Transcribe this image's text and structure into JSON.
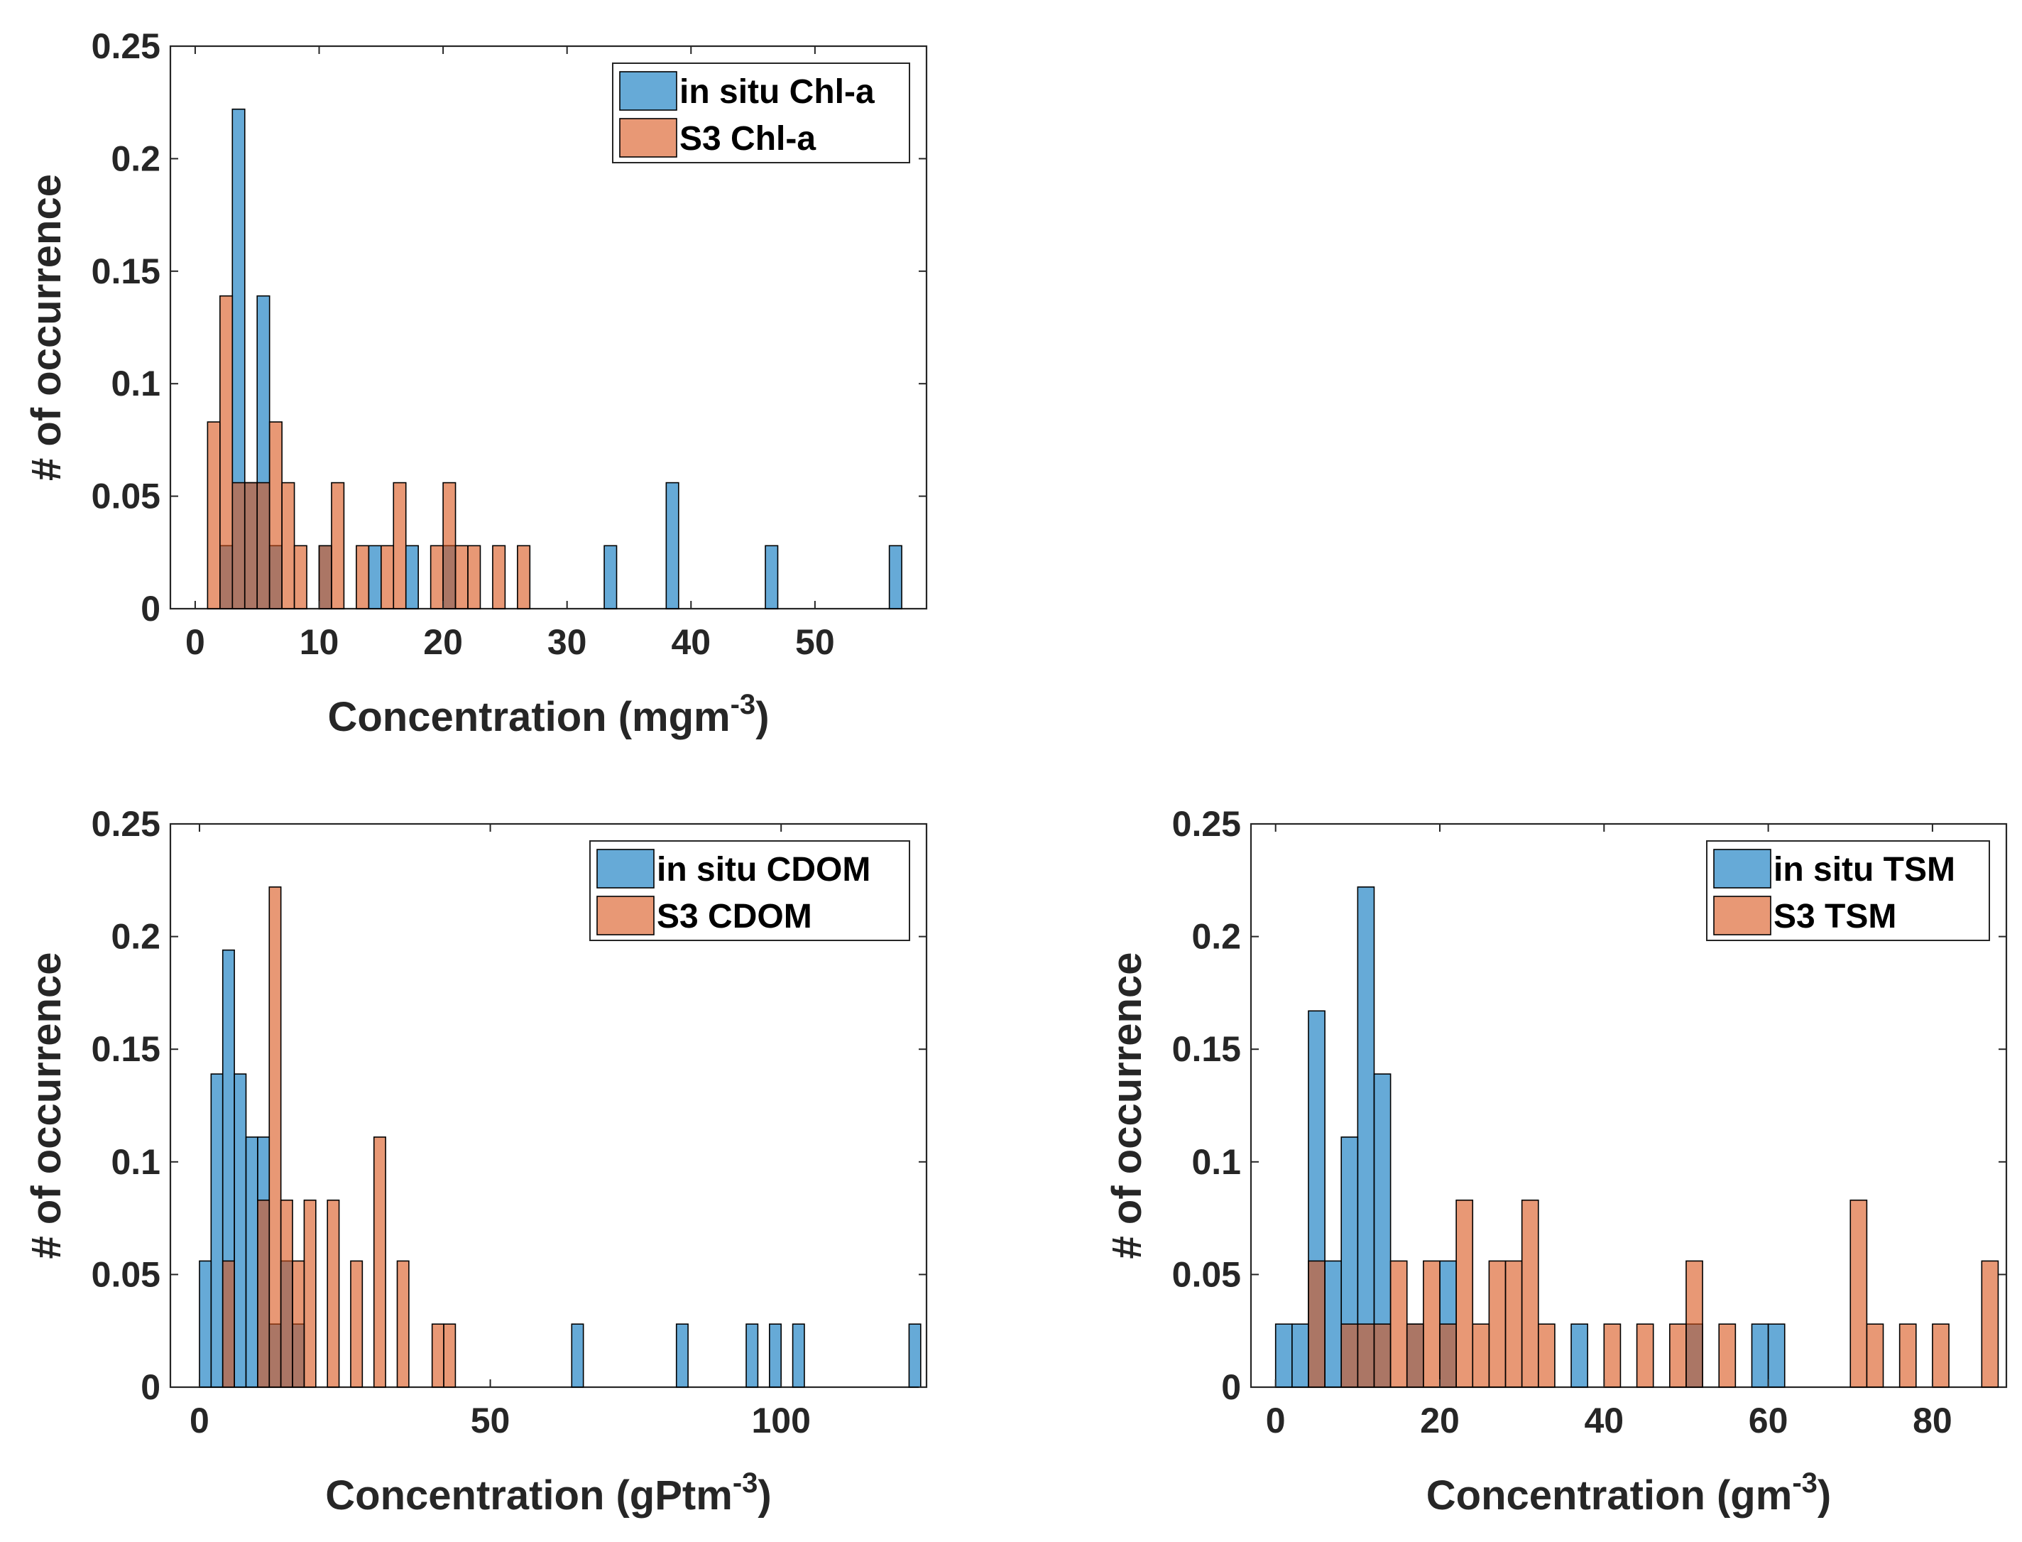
{
  "chart_data": [
    {
      "type": "bar",
      "subtype": "overlaid-histogram",
      "panel": "top-left",
      "title": "",
      "xlabel": "Concentration (mgm",
      "xlabel_sup": "-3",
      "xlabel_end": ")",
      "ylabel": "# of occurrence",
      "xlim": [
        -2,
        59
      ],
      "ylim": [
        0,
        0.25
      ],
      "xticks": [
        0,
        10,
        20,
        30,
        40,
        50
      ],
      "yticks": [
        0,
        0.05,
        0.1,
        0.15,
        0.2,
        0.25
      ],
      "ytick_labels": [
        "0",
        "0.05",
        "0.1",
        "0.15",
        "0.2",
        "0.25"
      ],
      "bin_width": 1,
      "legend_position": "top-right",
      "series": [
        {
          "name": "in situ Chl-a",
          "color": "#0072BD",
          "bins": [
            [
              2,
              0.028
            ],
            [
              3,
              0.222
            ],
            [
              4,
              0.056
            ],
            [
              5,
              0.139
            ],
            [
              6,
              0.028
            ],
            [
              10,
              0.028
            ],
            [
              14,
              0.028
            ],
            [
              17,
              0.028
            ],
            [
              20,
              0.028
            ],
            [
              33,
              0.028
            ],
            [
              38,
              0.056
            ],
            [
              46,
              0.028
            ],
            [
              56,
              0.028
            ]
          ]
        },
        {
          "name": "S3 Chl-a",
          "color": "#D95319",
          "bins": [
            [
              1,
              0.083
            ],
            [
              2,
              0.139
            ],
            [
              3,
              0.056
            ],
            [
              4,
              0.056
            ],
            [
              5,
              0.056
            ],
            [
              6,
              0.083
            ],
            [
              7,
              0.056
            ],
            [
              8,
              0.028
            ],
            [
              10,
              0.028
            ],
            [
              11,
              0.056
            ],
            [
              13,
              0.028
            ],
            [
              15,
              0.028
            ],
            [
              16,
              0.056
            ],
            [
              19,
              0.028
            ],
            [
              20,
              0.056
            ],
            [
              21,
              0.028
            ],
            [
              22,
              0.028
            ],
            [
              24,
              0.028
            ],
            [
              26,
              0.028
            ]
          ]
        }
      ]
    },
    {
      "type": "bar",
      "subtype": "overlaid-histogram",
      "panel": "bottom-left",
      "title": "",
      "xlabel": "Concentration (gPtm",
      "xlabel_sup": "-3",
      "xlabel_end": ")",
      "ylabel": "# of occurrence",
      "xlim": [
        -5,
        125
      ],
      "ylim": [
        0,
        0.25
      ],
      "xticks": [
        0,
        50,
        100
      ],
      "yticks": [
        0,
        0.05,
        0.1,
        0.15,
        0.2,
        0.25
      ],
      "ytick_labels": [
        "0",
        "0.05",
        "0.1",
        "0.15",
        "0.2",
        "0.25"
      ],
      "bin_width": 2,
      "legend_position": "top-right",
      "series": [
        {
          "name": "in situ CDOM",
          "color": "#0072BD",
          "bins": [
            [
              0,
              0.056
            ],
            [
              2,
              0.139
            ],
            [
              4,
              0.194
            ],
            [
              6,
              0.139
            ],
            [
              8,
              0.111
            ],
            [
              10,
              0.111
            ],
            [
              12,
              0.028
            ],
            [
              14,
              0.056
            ],
            [
              16,
              0.028
            ],
            [
              64,
              0.028
            ],
            [
              82,
              0.028
            ],
            [
              94,
              0.028
            ],
            [
              98,
              0.028
            ],
            [
              102,
              0.028
            ],
            [
              122,
              0.028
            ]
          ]
        },
        {
          "name": "S3 CDOM",
          "color": "#D95319",
          "bins": [
            [
              4,
              0.056
            ],
            [
              10,
              0.083
            ],
            [
              12,
              0.222
            ],
            [
              14,
              0.083
            ],
            [
              16,
              0.056
            ],
            [
              18,
              0.083
            ],
            [
              22,
              0.083
            ],
            [
              26,
              0.056
            ],
            [
              30,
              0.111
            ],
            [
              34,
              0.056
            ],
            [
              40,
              0.028
            ],
            [
              42,
              0.028
            ]
          ]
        }
      ]
    },
    {
      "type": "bar",
      "subtype": "overlaid-histogram",
      "panel": "bottom-right",
      "title": "",
      "xlabel": "Concentration (gm",
      "xlabel_sup": "-3",
      "xlabel_end": ")",
      "ylabel": "# of occurrence",
      "xlim": [
        -3,
        89
      ],
      "ylim": [
        0,
        0.25
      ],
      "xticks": [
        0,
        20,
        40,
        60,
        80
      ],
      "yticks": [
        0,
        0.05,
        0.1,
        0.15,
        0.2,
        0.25
      ],
      "ytick_labels": [
        "0",
        "0.05",
        "0.1",
        "0.15",
        "0.2",
        "0.25"
      ],
      "bin_width": 2,
      "legend_position": "top-right",
      "series": [
        {
          "name": "in situ TSM",
          "color": "#0072BD",
          "bins": [
            [
              0,
              0.028
            ],
            [
              2,
              0.028
            ],
            [
              4,
              0.167
            ],
            [
              6,
              0.056
            ],
            [
              8,
              0.111
            ],
            [
              10,
              0.222
            ],
            [
              12,
              0.139
            ],
            [
              16,
              0.028
            ],
            [
              20,
              0.056
            ],
            [
              36,
              0.028
            ],
            [
              50,
              0.028
            ],
            [
              58,
              0.028
            ],
            [
              60,
              0.028
            ]
          ]
        },
        {
          "name": "S3 TSM",
          "color": "#D95319",
          "bins": [
            [
              4,
              0.056
            ],
            [
              8,
              0.028
            ],
            [
              10,
              0.028
            ],
            [
              12,
              0.028
            ],
            [
              14,
              0.056
            ],
            [
              16,
              0.028
            ],
            [
              18,
              0.056
            ],
            [
              20,
              0.028
            ],
            [
              22,
              0.083
            ],
            [
              24,
              0.028
            ],
            [
              26,
              0.056
            ],
            [
              28,
              0.056
            ],
            [
              30,
              0.083
            ],
            [
              32,
              0.028
            ],
            [
              40,
              0.028
            ],
            [
              44,
              0.028
            ],
            [
              48,
              0.028
            ],
            [
              50,
              0.056
            ],
            [
              54,
              0.028
            ],
            [
              70,
              0.083
            ],
            [
              72,
              0.028
            ],
            [
              76,
              0.028
            ],
            [
              80,
              0.028
            ],
            [
              86,
              0.056
            ]
          ]
        }
      ]
    }
  ]
}
